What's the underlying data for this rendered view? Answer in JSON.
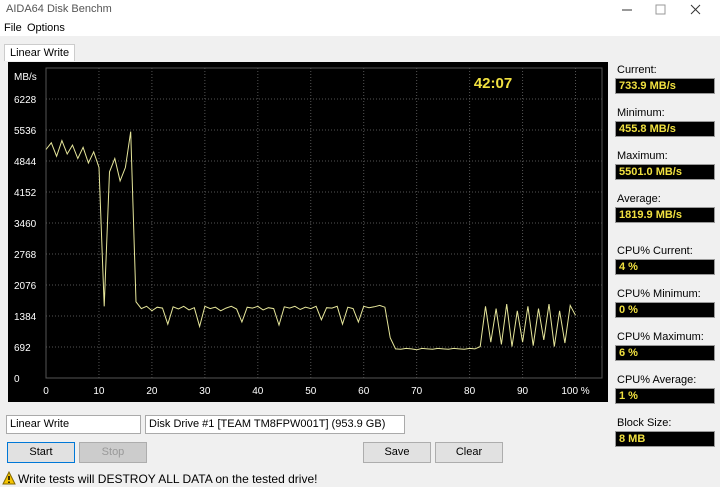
{
  "window": {
    "title": "AIDA64 Disk Benchm",
    "menu": [
      "File",
      "Options"
    ]
  },
  "tab": "Linear Write",
  "chart_data": {
    "type": "line",
    "y_label": "MB/s",
    "annotation": "42:07",
    "color": "#e6e69a",
    "x": [
      0,
      1,
      2,
      3,
      4,
      5,
      6,
      7,
      8,
      9,
      10,
      11,
      12,
      13,
      14,
      15,
      16,
      17,
      18,
      19,
      20,
      21,
      22,
      23,
      24,
      25,
      26,
      27,
      28,
      29,
      30,
      31,
      32,
      33,
      34,
      35,
      36,
      37,
      38,
      39,
      40,
      41,
      42,
      43,
      44,
      45,
      46,
      47,
      48,
      49,
      50,
      51,
      52,
      53,
      54,
      55,
      56,
      57,
      58,
      59,
      60,
      61,
      62,
      63,
      64,
      65,
      66,
      67,
      68,
      69,
      70,
      71,
      72,
      73,
      74,
      75,
      76,
      77,
      78,
      79,
      80,
      81,
      82,
      83,
      84,
      85,
      86,
      87,
      88,
      89,
      90,
      91,
      92,
      93,
      94,
      95,
      96,
      97,
      98,
      99,
      100
    ],
    "values": [
      5100,
      5250,
      4950,
      5300,
      5000,
      5200,
      4900,
      5150,
      4800,
      5050,
      4700,
      1600,
      4600,
      4900,
      4400,
      4700,
      5500,
      1700,
      1550,
      1600,
      1500,
      1580,
      1560,
      1200,
      1590,
      1540,
      1600,
      1520,
      1570,
      1150,
      1600,
      1550,
      1580,
      1500,
      1560,
      1600,
      1540,
      1250,
      1580,
      1560,
      1600,
      1520,
      1570,
      1550,
      1180,
      1590,
      1560,
      1600,
      1530,
      1580,
      1550,
      1600,
      1300,
      1570,
      1560,
      1600,
      1200,
      1580,
      1550,
      1250,
      1600,
      1570,
      1590,
      1620,
      1580,
      900,
      650,
      640,
      660,
      650,
      630,
      660,
      650,
      640,
      660,
      650,
      640,
      660,
      650,
      640,
      660,
      650,
      700,
      1600,
      800,
      1550,
      750,
      1650,
      700,
      1500,
      800,
      1600,
      720,
      1550,
      850,
      1650,
      700,
      1500,
      780,
      1620,
      1400
    ],
    "xlim": [
      0,
      105
    ],
    "xticks": [
      0,
      10,
      20,
      30,
      40,
      50,
      60,
      70,
      80,
      90,
      {
        "value": 100,
        "label": "100 %"
      }
    ],
    "ylim": [
      0,
      6920
    ],
    "yticks": [
      0,
      692,
      1384,
      2076,
      2768,
      3460,
      4152,
      4844,
      5536,
      6228
    ],
    "grid": true
  },
  "stats": [
    {
      "label": "Current:",
      "value": "733.9 MB/s"
    },
    {
      "label": "Minimum:",
      "value": "455.8 MB/s"
    },
    {
      "label": "Maximum:",
      "value": "5501.0 MB/s"
    },
    {
      "label": "Average:",
      "value": "1819.9 MB/s"
    },
    {
      "label": "CPU% Current:",
      "value": "4 %"
    },
    {
      "label": "CPU% Minimum:",
      "value": "0 %"
    },
    {
      "label": "CPU% Maximum:",
      "value": "6 %"
    },
    {
      "label": "CPU% Average:",
      "value": "1 %"
    },
    {
      "label": "Block Size:",
      "value": "8 MB"
    }
  ],
  "controls": {
    "test": "Linear Write",
    "drive": "Disk Drive #1  [TEAM TM8FPW001T]  (953.9 GB)",
    "buttons": [
      "Start",
      "Stop",
      "Save",
      "Clear"
    ]
  },
  "status": "Write tests will DESTROY ALL DATA on the tested drive!"
}
